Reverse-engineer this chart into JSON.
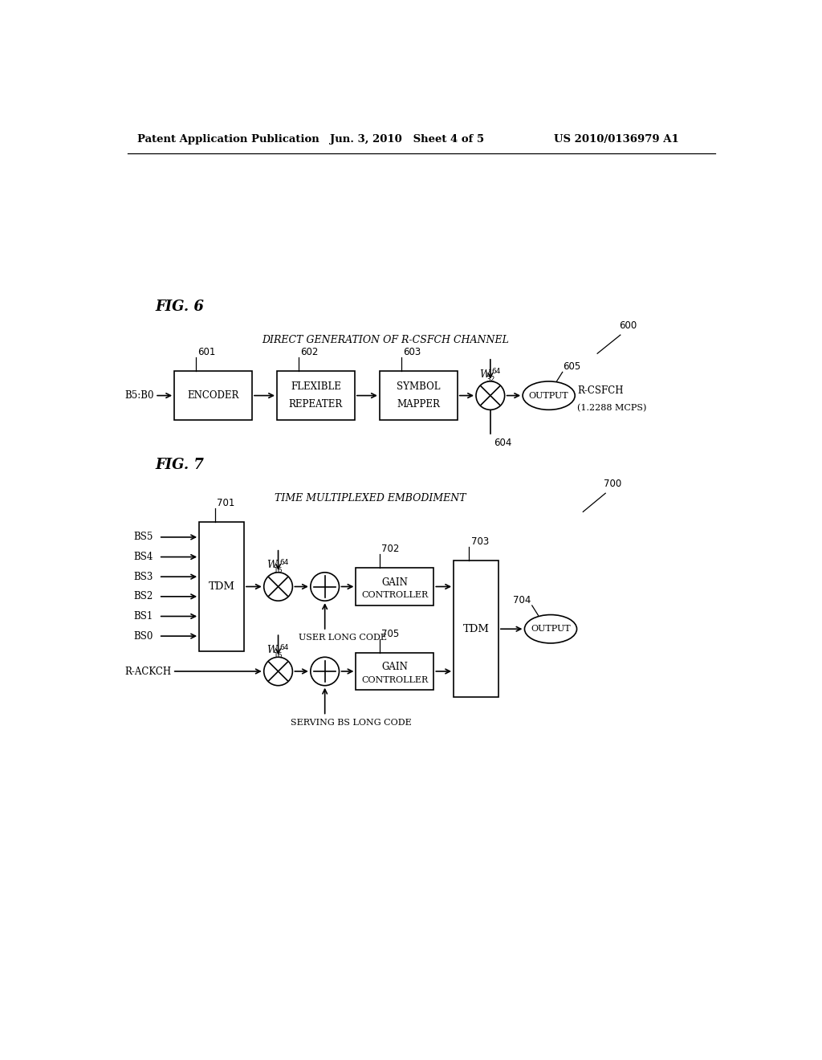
{
  "bg_color": "#ffffff",
  "header_left": "Patent Application Publication",
  "header_mid": "Jun. 3, 2010   Sheet 4 of 5",
  "header_right": "US 2010/0136979 A1",
  "fig6_label": "FIG. 6",
  "fig6_title": "DIRECT GENERATION OF R-CSFCH CHANNEL",
  "fig7_label": "FIG. 7",
  "fig7_title": "TIME MULTIPLEXED EMBODIMENT",
  "page_width": 10.24,
  "page_height": 13.2
}
